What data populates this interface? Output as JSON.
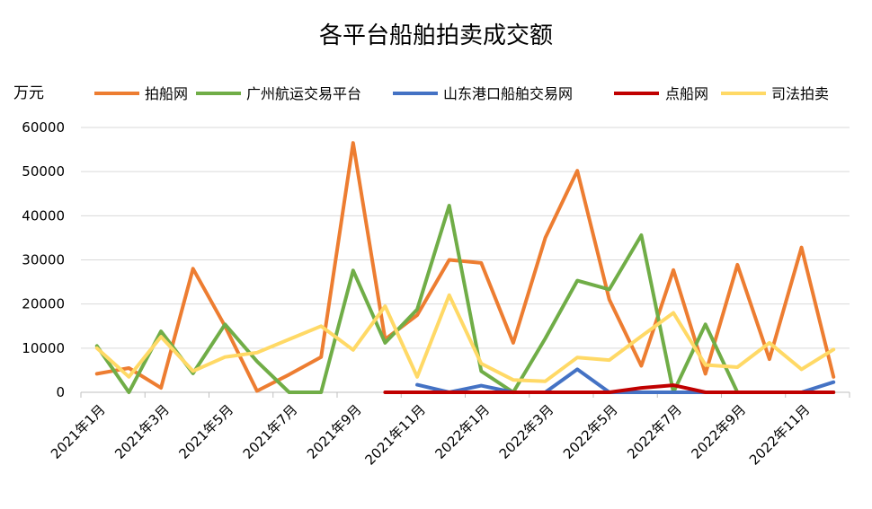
{
  "chart_data": {
    "type": "line",
    "title": "各平台船舶拍卖成交额",
    "ylabel": "万元",
    "xlabel": "",
    "ylim": [
      0,
      60000
    ],
    "yticks": [
      0,
      10000,
      20000,
      30000,
      40000,
      50000,
      60000
    ],
    "grid": true,
    "legend_position": "top",
    "categories": [
      "2021年1月",
      "2021年2月",
      "2021年3月",
      "2021年4月",
      "2021年5月",
      "2021年6月",
      "2021年7月",
      "2021年8月",
      "2021年9月",
      "2021年10月",
      "2021年11月",
      "2021年12月",
      "2022年1月",
      "2022年2月",
      "2022年3月",
      "2022年4月",
      "2022年5月",
      "2022年6月",
      "2022年7月",
      "2022年8月",
      "2022年9月",
      "2022年10月",
      "2022年11月",
      "2022年12月"
    ],
    "xtick_labels": [
      "2021年1月",
      "2021年3月",
      "2021年5月",
      "2021年7月",
      "2021年9月",
      "2021年11月",
      "2022年1月",
      "2022年3月",
      "2022年5月",
      "2022年7月",
      "2022年9月",
      "2022年11月"
    ],
    "series": [
      {
        "name": "拍船网",
        "color": "#ED7D31",
        "values": [
          4200,
          5500,
          1000,
          28000,
          15000,
          300,
          4000,
          8000,
          56500,
          12000,
          17500,
          30000,
          29300,
          11200,
          35000,
          50200,
          21000,
          6000,
          27700,
          4200,
          28900,
          7500,
          32800,
          3500
        ]
      },
      {
        "name": "广州航运交易平台",
        "color": "#70AD47",
        "values": [
          10500,
          0,
          13800,
          4300,
          15400,
          7000,
          0,
          0,
          27600,
          11200,
          18800,
          42300,
          4800,
          0,
          12200,
          25300,
          23300,
          35600,
          0,
          15400,
          0,
          0,
          0,
          0
        ]
      },
      {
        "name": "山东港口船舶交易网",
        "color": "#4472C4",
        "values": [
          null,
          null,
          null,
          null,
          null,
          null,
          null,
          null,
          null,
          null,
          1700,
          0,
          1500,
          0,
          0,
          5200,
          0,
          0,
          0,
          0,
          0,
          0,
          0,
          2300
        ]
      },
      {
        "name": "点船网",
        "color": "#C00000",
        "values": [
          null,
          null,
          null,
          null,
          null,
          null,
          null,
          null,
          null,
          0,
          0,
          0,
          0,
          0,
          0,
          0,
          0,
          1000,
          1600,
          0,
          0,
          0,
          0,
          0
        ]
      },
      {
        "name": "司法拍卖",
        "color": "#FFD966",
        "values": [
          10000,
          3500,
          12600,
          4800,
          8000,
          9000,
          12000,
          15000,
          9600,
          19500,
          3500,
          22000,
          6500,
          2800,
          2500,
          7900,
          7300,
          12700,
          18000,
          6200,
          5700,
          11200,
          5200,
          9700
        ]
      }
    ]
  }
}
